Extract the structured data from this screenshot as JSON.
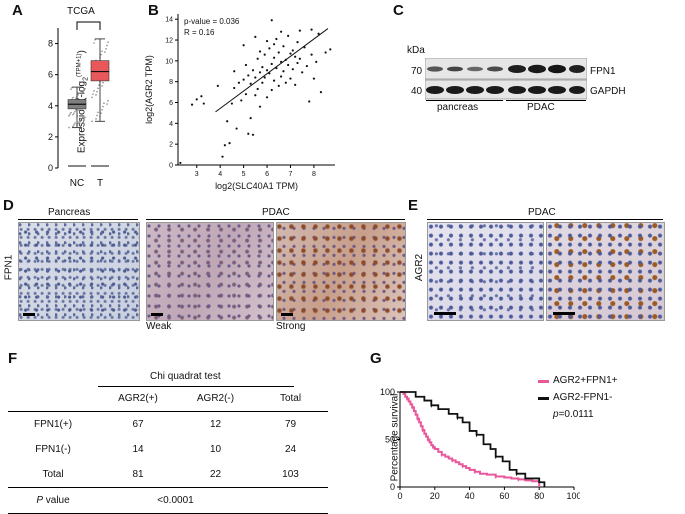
{
  "panels": {
    "A": "A",
    "B": "B",
    "C": "C",
    "D": "D",
    "E": "E",
    "F": "F",
    "G": "G"
  },
  "panelA": {
    "title": "TCGA",
    "ylabel": "Expression (-log",
    "ylabel_sub": "2",
    "ylabel_sup": "(TPM+1)",
    "ylabel_close": ")",
    "yticks": [
      "0",
      "2",
      "4",
      "6",
      "8"
    ],
    "categories": [
      "NC",
      "T"
    ],
    "box_colors": {
      "NC": "#7f7f7f",
      "T": "#e8585a"
    },
    "chart_data": {
      "type": "box",
      "categories": [
        "NC",
        "T"
      ],
      "ylim": [
        0,
        9
      ],
      "boxes": [
        {
          "name": "NC",
          "q1": 3.8,
          "median": 4.1,
          "q3": 4.4,
          "whisker_low": 2.6,
          "whisker_high": 5.2
        },
        {
          "name": "T",
          "q1": 5.6,
          "median": 6.2,
          "q3": 6.9,
          "whisker_low": 3.0,
          "whisker_high": 8.3
        }
      ],
      "significance_bracket": true
    }
  },
  "panelB": {
    "annot1": "p-value = 0.036",
    "annot2": "R = 0.16",
    "xlabel": "log2(SLC40A1 TPM)",
    "ylabel": "log2(AGR2 TPM)",
    "xticks": [
      "3",
      "4",
      "5",
      "6",
      "7",
      "8"
    ],
    "yticks": [
      "0",
      "2",
      "4",
      "6",
      "8",
      "10",
      "12",
      "14"
    ],
    "chart_data": {
      "type": "scatter",
      "xlim": [
        2.2,
        8.9
      ],
      "ylim": [
        0,
        14.5
      ],
      "regression": {
        "x": [
          3.8,
          8.6
        ],
        "y": [
          5.1,
          13.1
        ]
      },
      "points": [
        [
          2.3,
          0.2
        ],
        [
          2.8,
          5.8
        ],
        [
          3.0,
          6.3
        ],
        [
          3.2,
          6.6
        ],
        [
          3.3,
          5.9
        ],
        [
          3.9,
          7.6
        ],
        [
          4.1,
          0.8
        ],
        [
          4.2,
          1.9
        ],
        [
          4.3,
          4.2
        ],
        [
          4.4,
          2.1
        ],
        [
          4.5,
          5.9
        ],
        [
          4.6,
          7.4
        ],
        [
          4.7,
          3.5
        ],
        [
          4.8,
          7.9
        ],
        [
          4.9,
          6.2
        ],
        [
          5.0,
          8.2
        ],
        [
          5.1,
          9.6
        ],
        [
          5.1,
          6.8
        ],
        [
          5.2,
          3.0
        ],
        [
          5.2,
          8.6
        ],
        [
          5.3,
          4.5
        ],
        [
          5.3,
          7.8
        ],
        [
          5.4,
          9.1
        ],
        [
          5.4,
          2.9
        ],
        [
          5.5,
          8.4
        ],
        [
          5.5,
          6.7
        ],
        [
          5.6,
          10.2
        ],
        [
          5.6,
          7.3
        ],
        [
          5.7,
          8.9
        ],
        [
          5.7,
          5.6
        ],
        [
          5.8,
          9.4
        ],
        [
          5.8,
          7.9
        ],
        [
          5.9,
          10.6
        ],
        [
          5.9,
          8.4
        ],
        [
          6.0,
          9.1
        ],
        [
          6.0,
          6.5
        ],
        [
          6.1,
          11.2
        ],
        [
          6.1,
          8.8
        ],
        [
          6.2,
          9.7
        ],
        [
          6.2,
          7.2
        ],
        [
          6.3,
          10.3
        ],
        [
          6.3,
          8.1
        ],
        [
          6.4,
          12.1
        ],
        [
          6.4,
          9.3
        ],
        [
          6.5,
          10.8
        ],
        [
          6.5,
          7.6
        ],
        [
          6.6,
          9.9
        ],
        [
          6.6,
          8.5
        ],
        [
          6.7,
          11.4
        ],
        [
          6.7,
          9.0
        ],
        [
          6.8,
          10.1
        ],
        [
          6.8,
          7.9
        ],
        [
          6.9,
          12.4
        ],
        [
          6.9,
          9.6
        ],
        [
          7.0,
          10.7
        ],
        [
          7.0,
          8.3
        ],
        [
          7.1,
          11.0
        ],
        [
          7.1,
          9.2
        ],
        [
          7.2,
          10.4
        ],
        [
          7.2,
          7.7
        ],
        [
          7.3,
          11.8
        ],
        [
          7.3,
          9.8
        ],
        [
          7.4,
          10.2
        ],
        [
          7.5,
          8.9
        ],
        [
          7.6,
          11.3
        ],
        [
          7.7,
          9.5
        ],
        [
          7.8,
          6.1
        ],
        [
          7.9,
          10.6
        ],
        [
          8.0,
          8.3
        ],
        [
          8.1,
          9.9
        ],
        [
          8.2,
          12.6
        ],
        [
          8.3,
          7.0
        ],
        [
          8.5,
          10.8
        ],
        [
          8.7,
          11.1
        ],
        [
          6.2,
          13.9
        ],
        [
          5.0,
          11.5
        ],
        [
          4.6,
          9.0
        ],
        [
          5.5,
          12.3
        ],
        [
          6.0,
          11.9
        ],
        [
          6.6,
          12.8
        ],
        [
          7.4,
          12.9
        ],
        [
          7.9,
          13.0
        ],
        [
          5.7,
          10.9
        ],
        [
          6.3,
          11.6
        ]
      ]
    }
  },
  "panelC": {
    "kda": "kDa",
    "mw_70": "70",
    "mw_40": "40",
    "band1": "FPN1",
    "band2": "GAPDH",
    "group1": "pancreas",
    "group2": "PDAC"
  },
  "panelD": {
    "header1": "Pancreas",
    "header2": "PDAC",
    "rowlabel": "FPN1",
    "cap_weak": "Weak",
    "cap_strong": "Strong"
  },
  "panelE": {
    "header": "PDAC",
    "rowlabel": "AGR2"
  },
  "panelF": {
    "title": "Chi quadrat  test",
    "head": [
      "",
      "AGR2(+)",
      "AGR2(-)",
      "Total"
    ],
    "rows": [
      [
        "FPN1(+)",
        "67",
        "12",
        "79"
      ],
      [
        "FPN1(-)",
        "14",
        "10",
        "24"
      ],
      [
        "Total",
        "81",
        "22",
        "103"
      ]
    ],
    "pvalue_label": "P",
    "pvalue_label_rest": " value",
    "pvalue": "<0.0001"
  },
  "panelG": {
    "ylabel": "Percentage survival",
    "legend1": "AGR2+FPN1+",
    "legend2": "AGR2-FPN1-",
    "pvalue_prefix": "p",
    "pvalue_rest": "=0.0111",
    "colors": {
      "pos": "#e8579a",
      "neg": "#111111"
    },
    "xticks": [
      "0",
      "20",
      "40",
      "60",
      "80",
      "100"
    ],
    "yticks": [
      "0",
      "50",
      "100"
    ],
    "chart_data": {
      "type": "line",
      "xlim": [
        0,
        100
      ],
      "ylim": [
        0,
        100
      ],
      "series": [
        {
          "name": "AGR2+FPN1+",
          "steps": [
            [
              0,
              100
            ],
            [
              2,
              98
            ],
            [
              3,
              95
            ],
            [
              4,
              93
            ],
            [
              5,
              90
            ],
            [
              6,
              87
            ],
            [
              7,
              84
            ],
            [
              8,
              80
            ],
            [
              9,
              76
            ],
            [
              10,
              72
            ],
            [
              11,
              68
            ],
            [
              12,
              64
            ],
            [
              13,
              60
            ],
            [
              14,
              56
            ],
            [
              15,
              53
            ],
            [
              16,
              50
            ],
            [
              17,
              47
            ],
            [
              18,
              44
            ],
            [
              19,
              42
            ],
            [
              20,
              40
            ],
            [
              22,
              37
            ],
            [
              24,
              34
            ],
            [
              26,
              32
            ],
            [
              28,
              30
            ],
            [
              30,
              28
            ],
            [
              32,
              26
            ],
            [
              34,
              24
            ],
            [
              36,
              22
            ],
            [
              38,
              20
            ],
            [
              40,
              18
            ],
            [
              43,
              16
            ],
            [
              46,
              14
            ],
            [
              50,
              13
            ],
            [
              55,
              11
            ],
            [
              60,
              10
            ],
            [
              64,
              9
            ],
            [
              68,
              8
            ],
            [
              72,
              7
            ],
            [
              76,
              6
            ],
            [
              80,
              0
            ]
          ]
        },
        {
          "name": "AGR2-FPN1-",
          "steps": [
            [
              0,
              100
            ],
            [
              9,
              95
            ],
            [
              14,
              91
            ],
            [
              18,
              86
            ],
            [
              22,
              82
            ],
            [
              28,
              77
            ],
            [
              33,
              73
            ],
            [
              36,
              68
            ],
            [
              40,
              59
            ],
            [
              44,
              55
            ],
            [
              48,
              45
            ],
            [
              52,
              40
            ],
            [
              55,
              32
            ],
            [
              59,
              27
            ],
            [
              63,
              18
            ],
            [
              67,
              14
            ],
            [
              72,
              9
            ],
            [
              80,
              5
            ],
            [
              83,
              0
            ]
          ]
        }
      ]
    }
  }
}
